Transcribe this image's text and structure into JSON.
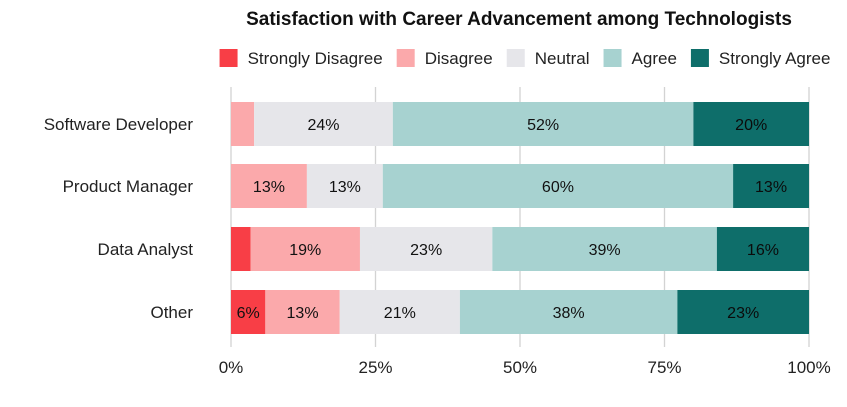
{
  "chart_data": {
    "type": "bar",
    "orientation": "horizontal",
    "stacked": true,
    "normalized": true,
    "title": "Satisfaction with Career Advancement among Technologists",
    "categories": [
      "Software Developer",
      "Product Manager",
      "Data Analyst",
      "Other"
    ],
    "series": [
      {
        "name": "Strongly Disagree",
        "color": "#f83e46",
        "values": [
          0,
          0,
          3.4,
          6
        ],
        "labels": [
          "",
          "",
          "",
          "6%"
        ]
      },
      {
        "name": "Disagree",
        "color": "#fba9ab",
        "values": [
          4,
          13,
          19,
          13
        ],
        "labels": [
          "",
          "13%",
          "19%",
          "13%"
        ]
      },
      {
        "name": "Neutral",
        "color": "#e6e6ea",
        "values": [
          24,
          13,
          23,
          21
        ],
        "labels": [
          "24%",
          "13%",
          "23%",
          "21%"
        ]
      },
      {
        "name": "Agree",
        "color": "#a7d2d0",
        "values": [
          52,
          60,
          39,
          38
        ],
        "labels": [
          "52%",
          "60%",
          "39%",
          "38%"
        ]
      },
      {
        "name": "Strongly Agree",
        "color": "#0e6e6a",
        "values": [
          20,
          13,
          16,
          23
        ],
        "labels": [
          "20%",
          "13%",
          "16%",
          "23%"
        ]
      }
    ],
    "xticks": [
      "0%",
      "25%",
      "50%",
      "75%",
      "100%"
    ],
    "xlim": [
      0,
      100
    ],
    "grid": "vertical",
    "legend_position": "top"
  }
}
